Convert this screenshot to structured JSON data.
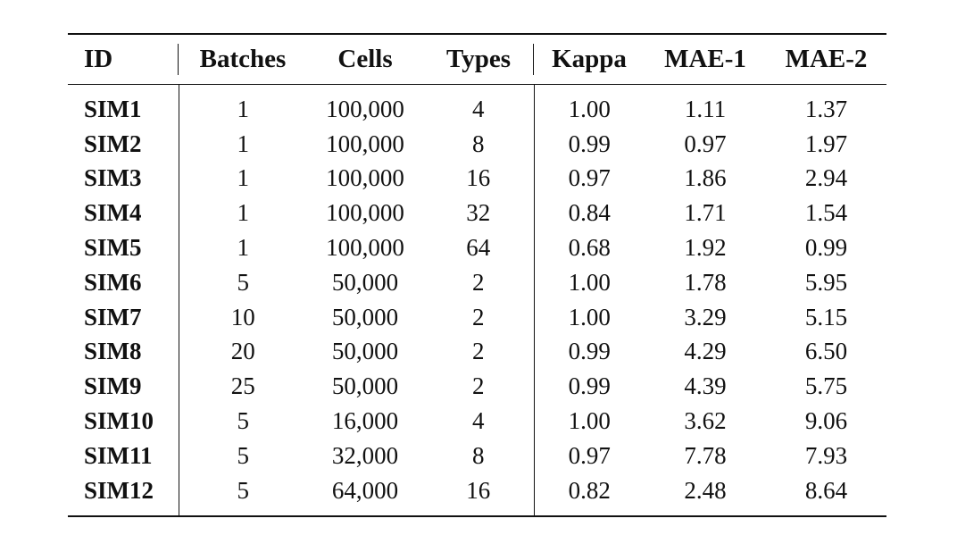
{
  "table": {
    "headers": [
      "ID",
      "Batches",
      "Cells",
      "Types",
      "Kappa",
      "MAE-1",
      "MAE-2"
    ],
    "rows": [
      [
        "SIM1",
        "1",
        "100,000",
        "4",
        "1.00",
        "1.11",
        "1.37"
      ],
      [
        "SIM2",
        "1",
        "100,000",
        "8",
        "0.99",
        "0.97",
        "1.97"
      ],
      [
        "SIM3",
        "1",
        "100,000",
        "16",
        "0.97",
        "1.86",
        "2.94"
      ],
      [
        "SIM4",
        "1",
        "100,000",
        "32",
        "0.84",
        "1.71",
        "1.54"
      ],
      [
        "SIM5",
        "1",
        "100,000",
        "64",
        "0.68",
        "1.92",
        "0.99"
      ],
      [
        "SIM6",
        "5",
        "50,000",
        "2",
        "1.00",
        "1.78",
        "5.95"
      ],
      [
        "SIM7",
        "10",
        "50,000",
        "2",
        "1.00",
        "3.29",
        "5.15"
      ],
      [
        "SIM8",
        "20",
        "50,000",
        "2",
        "0.99",
        "4.29",
        "6.50"
      ],
      [
        "SIM9",
        "25",
        "50,000",
        "2",
        "0.99",
        "4.39",
        "5.75"
      ],
      [
        "SIM10",
        "5",
        "16,000",
        "4",
        "1.00",
        "3.62",
        "9.06"
      ],
      [
        "SIM11",
        "5",
        "32,000",
        "8",
        "0.97",
        "7.78",
        "7.93"
      ],
      [
        "SIM12",
        "5",
        "64,000",
        "16",
        "0.82",
        "2.48",
        "8.64"
      ]
    ]
  }
}
